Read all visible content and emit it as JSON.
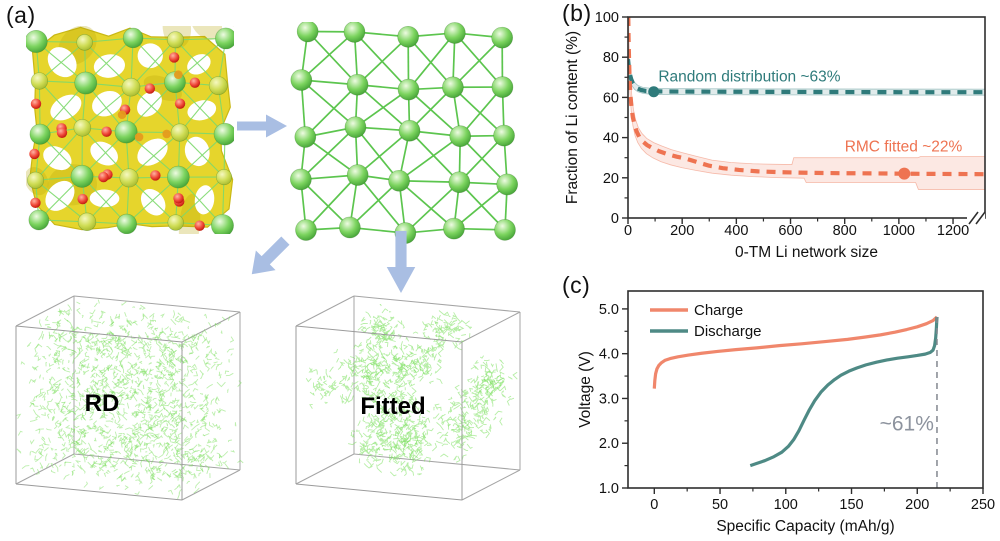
{
  "figure": {
    "panels": {
      "a": {
        "label": "(a)",
        "rd_label": "RD",
        "fitted_label": "Fitted"
      },
      "b": {
        "label": "(b)"
      },
      "c": {
        "label": "(c)"
      }
    },
    "colors": {
      "arrow_blue": "#a9bee3",
      "sphere_green": "#5bbf4a",
      "sphere_yellow_green": "#c8d94f",
      "sphere_red": "#d81d10",
      "sphere_orange": "#e59b1e",
      "isosurface_yellow": "#e6d52c",
      "isosurface_edge": "#c9b815",
      "bond_green": "#7dd96c",
      "lattice_bond_green": "#54c245",
      "cube_edge": "#9b9b9b",
      "scatter_green": "#7ce05e"
    }
  },
  "chart_data": [
    {
      "id": "b",
      "type": "line",
      "panel_label": "(b)",
      "xlabel": "0-TM Li network size",
      "ylabel": "Fraction of Li content (%)",
      "xlim": [
        0,
        1318
      ],
      "ylim": [
        0,
        100
      ],
      "axis_break_x": true,
      "grid": false,
      "xticks": [
        {
          "v": 0,
          "label": "0"
        },
        {
          "v": 200,
          "label": "200"
        },
        {
          "v": 400,
          "label": "400"
        },
        {
          "v": 600,
          "label": "600"
        },
        {
          "v": 800,
          "label": "800"
        },
        {
          "v": 1000,
          "label": "1000"
        },
        {
          "v": 1200,
          "label": "1200"
        }
      ],
      "xminor": [
        100,
        300,
        500,
        700,
        900,
        1100
      ],
      "yticks": [
        {
          "v": 0,
          "label": "0"
        },
        {
          "v": 20,
          "label": "20"
        },
        {
          "v": 40,
          "label": "40"
        },
        {
          "v": 60,
          "label": "60"
        },
        {
          "v": 80,
          "label": "80"
        },
        {
          "v": 100,
          "label": "100"
        }
      ],
      "yminor": [
        10,
        30,
        50,
        70,
        90
      ],
      "series": [
        {
          "name": "Random distribution",
          "color": "#2f7b7b",
          "width": 4.2,
          "dash": "9 7",
          "points": [
            [
              0,
              79
            ],
            [
              3,
              75
            ],
            [
              7,
              71.5
            ],
            [
              12,
              69
            ],
            [
              18,
              67
            ],
            [
              26,
              65.5
            ],
            [
              36,
              64.4
            ],
            [
              48,
              63.7
            ],
            [
              65,
              63.2
            ],
            [
              85,
              63.05
            ],
            [
              100,
              63
            ],
            [
              200,
              62.9
            ],
            [
              400,
              62.8
            ],
            [
              700,
              62.7
            ],
            [
              1000,
              62.6
            ],
            [
              1318,
              62.6
            ]
          ],
          "marker": {
            "x": 95,
            "y": 62.8,
            "r": 5.5
          },
          "band": {
            "fill": "rgba(47,123,123,0.15)",
            "edge": "rgba(47,123,123,0.40)",
            "upper": [
              [
                0,
                81
              ],
              [
                6,
                74
              ],
              [
                14,
                70
              ],
              [
                24,
                67.5
              ],
              [
                36,
                66
              ],
              [
                55,
                65
              ],
              [
                80,
                64.6
              ],
              [
                120,
                64.4
              ],
              [
                300,
                64.3
              ],
              [
                700,
                64.2
              ],
              [
                1318,
                64.1
              ]
            ],
            "lower": [
              [
                0,
                77
              ],
              [
                6,
                69
              ],
              [
                14,
                66
              ],
              [
                24,
                64
              ],
              [
                36,
                62.8
              ],
              [
                55,
                62
              ],
              [
                80,
                61.6
              ],
              [
                120,
                61.4
              ],
              [
                300,
                61.3
              ],
              [
                700,
                61.2
              ],
              [
                1318,
                61.1
              ]
            ]
          }
        },
        {
          "name": "RMC fitted",
          "color": "#ee7351",
          "width": 4.2,
          "dash": "9 7",
          "points": [
            [
              1,
              100
            ],
            [
              2,
              90
            ],
            [
              4,
              78
            ],
            [
              6,
              69
            ],
            [
              9,
              61
            ],
            [
              13,
              55
            ],
            [
              18,
              50
            ],
            [
              24,
              46.5
            ],
            [
              32,
              43
            ],
            [
              42,
              40.2
            ],
            [
              55,
              38
            ],
            [
              70,
              36.3
            ],
            [
              90,
              34.8
            ],
            [
              115,
              33.2
            ],
            [
              145,
              31.8
            ],
            [
              180,
              30.5
            ],
            [
              215,
              29.5
            ],
            [
              255,
              27.8
            ],
            [
              300,
              26
            ],
            [
              350,
              24.8
            ],
            [
              410,
              23.9
            ],
            [
              480,
              23.2
            ],
            [
              560,
              22.8
            ],
            [
              660,
              22.5
            ],
            [
              780,
              22.3
            ],
            [
              900,
              22.2
            ],
            [
              1050,
              22
            ],
            [
              1200,
              21.9
            ],
            [
              1318,
              21.8
            ]
          ],
          "marker": {
            "x": 1020,
            "y": 22.1,
            "r": 6
          },
          "band": {
            "fill": "rgba(238,115,81,0.16)",
            "edge": "rgba(238,115,81,0.45)",
            "upper": [
              [
                2,
                100
              ],
              [
                5,
                82
              ],
              [
                9,
                70
              ],
              [
                14,
                61
              ],
              [
                20,
                54
              ],
              [
                28,
                49
              ],
              [
                38,
                45
              ],
              [
                52,
                42
              ],
              [
                70,
                39.5
              ],
              [
                95,
                37.5
              ],
              [
                125,
                35.8
              ],
              [
                160,
                34
              ],
              [
                200,
                32.5
              ],
              [
                250,
                30.8
              ],
              [
                310,
                28.8
              ],
              [
                380,
                27.6
              ],
              [
                460,
                27
              ],
              [
                545,
                26.7
              ],
              [
                605,
                26.6
              ],
              [
                612,
                30
              ],
              [
                1070,
                30
              ],
              [
                1080,
                30.6
              ],
              [
                1318,
                30.6
              ]
            ],
            "lower": [
              [
                0,
                95
              ],
              [
                3,
                75
              ],
              [
                7,
                62
              ],
              [
                12,
                53
              ],
              [
                18,
                46
              ],
              [
                26,
                41
              ],
              [
                36,
                37.5
              ],
              [
                50,
                34.5
              ],
              [
                68,
                32
              ],
              [
                92,
                29.9
              ],
              [
                122,
                28
              ],
              [
                158,
                26.4
              ],
              [
                200,
                25
              ],
              [
                250,
                23.7
              ],
              [
                310,
                22.3
              ],
              [
                380,
                21.3
              ],
              [
                460,
                20.6
              ],
              [
                550,
                20.1
              ],
              [
                650,
                19.8
              ],
              [
                658,
                17.6
              ],
              [
                1062,
                17.6
              ],
              [
                1072,
                14.2
              ],
              [
                1318,
                14.2
              ]
            ]
          }
        }
      ],
      "annotations": [
        {
          "text": "Random distribution ~63%",
          "x": 112,
          "y": 68,
          "color": "#2f7b7b",
          "size": 15.5,
          "anchor": "start"
        },
        {
          "text": "RMC fitted ~22%",
          "x": 800,
          "y": 33,
          "color": "#ee7351",
          "size": 15.5,
          "anchor": "start"
        }
      ]
    },
    {
      "id": "c",
      "type": "line",
      "panel_label": "(c)",
      "xlabel": "Specific Capacity (mAh/g)",
      "ylabel": "Voltage (V)",
      "xlim": [
        -20,
        250
      ],
      "ylim": [
        1.0,
        5.4
      ],
      "axis_break_x": false,
      "grid": false,
      "xticks": [
        {
          "v": 0,
          "label": "0"
        },
        {
          "v": 50,
          "label": "50"
        },
        {
          "v": 100,
          "label": "100"
        },
        {
          "v": 150,
          "label": "150"
        },
        {
          "v": 200,
          "label": "200"
        },
        {
          "v": 250,
          "label": "250"
        }
      ],
      "xminor": [
        25,
        75,
        125,
        175,
        225
      ],
      "yticks": [
        {
          "v": 1,
          "label": "1.0"
        },
        {
          "v": 2,
          "label": "2.0"
        },
        {
          "v": 3,
          "label": "3.0"
        },
        {
          "v": 4,
          "label": "4.0"
        },
        {
          "v": 5,
          "label": "5.0"
        }
      ],
      "yminor": [
        1.5,
        2.5,
        3.5,
        4.5
      ],
      "legend": {
        "entries": [
          {
            "label": "Charge",
            "color": "#f0876c"
          },
          {
            "label": "Discharge",
            "color": "#4e8a85"
          }
        ]
      },
      "series": [
        {
          "name": "Charge",
          "color": "#f0876c",
          "width": 3.2,
          "points": [
            [
              0,
              3.22
            ],
            [
              0.4,
              3.4
            ],
            [
              1,
              3.55
            ],
            [
              2,
              3.66
            ],
            [
              3.5,
              3.74
            ],
            [
              5.5,
              3.8
            ],
            [
              8,
              3.85
            ],
            [
              12,
              3.89
            ],
            [
              18,
              3.93
            ],
            [
              26,
              3.97
            ],
            [
              36,
              4.01
            ],
            [
              48,
              4.05
            ],
            [
              62,
              4.09
            ],
            [
              78,
              4.13
            ],
            [
              95,
              4.18
            ],
            [
              112,
              4.22
            ],
            [
              130,
              4.27
            ],
            [
              147,
              4.32
            ],
            [
              160,
              4.37
            ],
            [
              172,
              4.42
            ],
            [
              183,
              4.48
            ],
            [
              192,
              4.54
            ],
            [
              200,
              4.6
            ],
            [
              207,
              4.67
            ],
            [
              212,
              4.74
            ],
            [
              215,
              4.82
            ]
          ]
        },
        {
          "name": "Discharge",
          "color": "#4e8a85",
          "width": 3.2,
          "points": [
            [
              215,
              4.82
            ],
            [
              214.5,
              4.55
            ],
            [
              214,
              4.35
            ],
            [
              213.2,
              4.18
            ],
            [
              212,
              4.08
            ],
            [
              210,
              4.03
            ],
            [
              206,
              3.99
            ],
            [
              200,
              3.96
            ],
            [
              193,
              3.93
            ],
            [
              185,
              3.9
            ],
            [
              177,
              3.86
            ],
            [
              169,
              3.81
            ],
            [
              161,
              3.75
            ],
            [
              154,
              3.68
            ],
            [
              148,
              3.61
            ],
            [
              142,
              3.52
            ],
            [
              137,
              3.42
            ],
            [
              132,
              3.3
            ],
            [
              127,
              3.15
            ],
            [
              122,
              2.95
            ],
            [
              118,
              2.75
            ],
            [
              114,
              2.52
            ],
            [
              110,
              2.28
            ],
            [
              106,
              2.08
            ],
            [
              102,
              1.93
            ],
            [
              97,
              1.8
            ],
            [
              91,
              1.7
            ],
            [
              84,
              1.61
            ],
            [
              78,
              1.55
            ],
            [
              73,
              1.5
            ]
          ]
        }
      ],
      "vlines": [
        {
          "x": 215,
          "y1": 1.0,
          "y2": 4.82,
          "color": "#82878f",
          "dash": "6 5",
          "width": 1.5
        }
      ],
      "annotations": [
        {
          "text": "~61%",
          "x": 192,
          "y": 2.28,
          "color": "#8d939e",
          "size": 21,
          "anchor": "middle"
        }
      ]
    }
  ]
}
